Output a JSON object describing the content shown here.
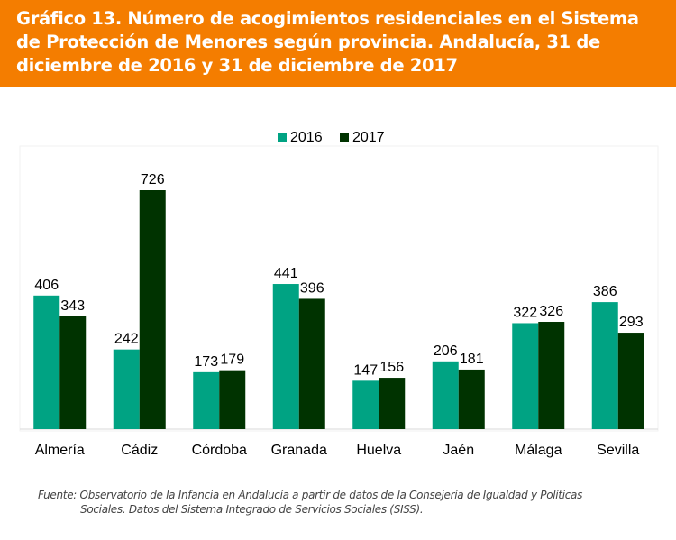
{
  "title": "Gráfico 13. Número de acogimientos residenciales en el Sistema de Protección de Menores según provincia. Andalucía, 31 de diciembre de 2016 y 31 de diciembre de 2017",
  "source_line1": "Fuente: Observatorio de la Infancia en Andalucía a partir de datos de la Consejería de Igualdad y Políticas",
  "source_line2": "Sociales. Datos del Sistema Integrado de Servicios Sociales (SISS).",
  "colors": {
    "header": "#F47D00",
    "series_2016": "#00A383",
    "series_2017": "#003300"
  },
  "chart_data": {
    "type": "bar",
    "categories": [
      "Almería",
      "Cádiz",
      "Córdoba",
      "Granada",
      "Huelva",
      "Jaén",
      "Málaga",
      "Sevilla"
    ],
    "series": [
      {
        "name": "2016",
        "values": [
          406,
          242,
          173,
          441,
          147,
          206,
          322,
          386
        ]
      },
      {
        "name": "2017",
        "values": [
          343,
          726,
          179,
          396,
          156,
          181,
          326,
          293
        ]
      }
    ],
    "legend": "top-center",
    "grid": false,
    "data_labels": true,
    "ylim": [
      0,
      726
    ]
  }
}
